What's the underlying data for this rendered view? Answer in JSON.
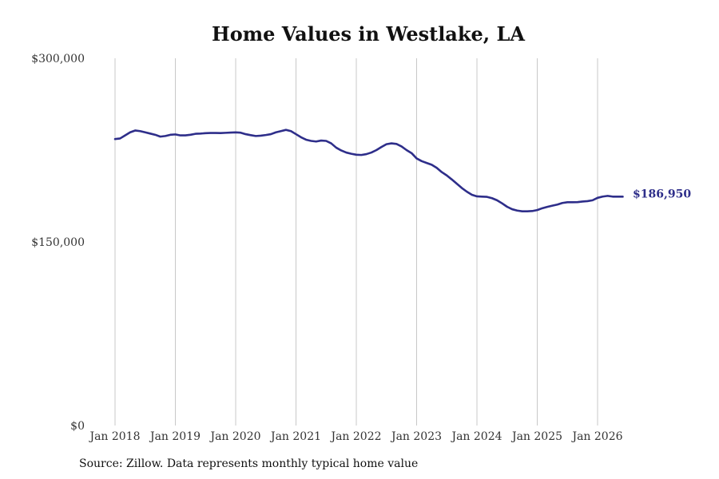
{
  "chart_data": {
    "type": "line",
    "title": "Home Values in Westlake, LA",
    "xlabel": "",
    "ylabel": "",
    "ylim": [
      0,
      300000
    ],
    "xlim": [
      "2018-01",
      "2026-06"
    ],
    "y_ticks": [
      0,
      150000,
      300000
    ],
    "y_tick_labels": [
      "$0",
      "$150,000",
      "$300,000"
    ],
    "x_tick_years": [
      2018,
      2019,
      2020,
      2021,
      2022,
      2023,
      2024,
      2025,
      2026
    ],
    "x_tick_labels": [
      "Jan 2018",
      "Jan 2019",
      "Jan 2020",
      "Jan 2021",
      "Jan 2022",
      "Jan 2023",
      "Jan 2024",
      "Jan 2025",
      "Jan 2026"
    ],
    "grid": "vertical",
    "series_color": "#2e2e8a",
    "end_label": "$186,950",
    "series": [
      {
        "x": [
          "2018-01",
          "2018-02",
          "2018-03",
          "2018-04",
          "2018-05",
          "2018-06",
          "2018-07",
          "2018-08",
          "2018-09",
          "2018-10",
          "2018-11",
          "2018-12",
          "2019-01",
          "2019-02",
          "2019-03",
          "2019-04",
          "2019-05",
          "2019-06",
          "2019-07",
          "2019-08",
          "2019-09",
          "2019-10",
          "2019-11",
          "2019-12",
          "2020-01",
          "2020-02",
          "2020-03",
          "2020-04",
          "2020-05",
          "2020-06",
          "2020-07",
          "2020-08",
          "2020-09",
          "2020-10",
          "2020-11",
          "2020-12",
          "2021-01",
          "2021-02",
          "2021-03",
          "2021-04",
          "2021-05",
          "2021-06",
          "2021-07",
          "2021-08",
          "2021-09",
          "2021-10",
          "2021-11",
          "2021-12",
          "2022-01",
          "2022-02",
          "2022-03",
          "2022-04",
          "2022-05",
          "2022-06",
          "2022-07",
          "2022-08",
          "2022-09",
          "2022-10",
          "2022-11",
          "2022-12",
          "2023-01",
          "2023-02",
          "2023-03",
          "2023-04",
          "2023-05",
          "2023-06",
          "2023-07",
          "2023-08",
          "2023-09",
          "2023-10",
          "2023-11",
          "2023-12",
          "2024-01",
          "2024-02",
          "2024-03",
          "2024-04",
          "2024-05",
          "2024-06",
          "2024-07",
          "2024-08",
          "2024-09",
          "2024-10",
          "2024-11",
          "2024-12",
          "2025-01",
          "2025-02",
          "2025-03",
          "2025-04",
          "2025-05",
          "2025-06",
          "2025-07",
          "2025-08",
          "2025-09",
          "2025-10",
          "2025-11",
          "2025-12",
          "2026-01",
          "2026-02",
          "2026-03",
          "2026-04",
          "2026-05",
          "2026-06"
        ],
        "values": [
          234000,
          234500,
          237000,
          239500,
          241000,
          240500,
          239500,
          238500,
          237500,
          236000,
          236500,
          237500,
          237800,
          237000,
          237000,
          237500,
          238300,
          238500,
          238800,
          239000,
          239000,
          238900,
          239100,
          239300,
          239500,
          239200,
          238000,
          237200,
          236500,
          236800,
          237300,
          238000,
          239500,
          240500,
          241500,
          240500,
          238000,
          235500,
          233500,
          232500,
          232000,
          232800,
          232500,
          230500,
          227000,
          224700,
          223000,
          222000,
          221200,
          221000,
          221700,
          223000,
          225000,
          227500,
          229800,
          230500,
          230000,
          228000,
          225000,
          222500,
          218200,
          216000,
          214500,
          213000,
          210500,
          207000,
          204300,
          201000,
          197500,
          194000,
          191000,
          188500,
          187200,
          187000,
          186800,
          185700,
          184000,
          181500,
          178700,
          176700,
          175600,
          175000,
          175000,
          175200,
          176000,
          177500,
          178600,
          179600,
          180500,
          181800,
          182400,
          182400,
          182500,
          183000,
          183300,
          184000,
          186000,
          187000,
          187600,
          187000,
          186950,
          186950
        ]
      }
    ]
  },
  "source": "Source: Zillow. Data represents monthly typical home value"
}
